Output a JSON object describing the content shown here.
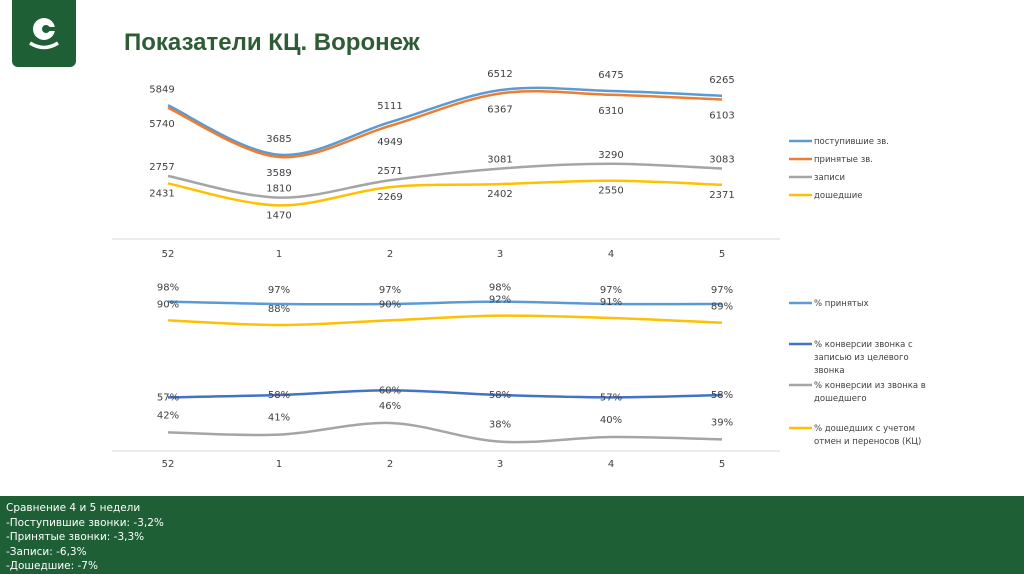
{
  "header": {
    "title": "Показатели КЦ. Воронеж"
  },
  "chart_data": [
    {
      "type": "line",
      "categories": [
        "52",
        "1",
        "2",
        "3",
        "4",
        "5"
      ],
      "ylim": [
        0,
        7000
      ],
      "grid": false,
      "legend": "right",
      "series": [
        {
          "name": "поступившие зв.",
          "color": "#5b9bd5",
          "values": [
            5849,
            3685,
            5111,
            6512,
            6475,
            6265
          ]
        },
        {
          "name": "принятые зв.",
          "color": "#ed7d31",
          "values": [
            5740,
            3589,
            4949,
            6367,
            6310,
            6103
          ]
        },
        {
          "name": "записи",
          "color": "#a5a5a5",
          "values": [
            2757,
            1810,
            2571,
            3081,
            3290,
            3083
          ]
        },
        {
          "name": "дошедшие",
          "color": "#ffc000",
          "values": [
            2431,
            1470,
            2269,
            2402,
            2550,
            2371
          ]
        }
      ]
    },
    {
      "type": "line",
      "categories": [
        "52",
        "1",
        "2",
        "3",
        "4",
        "5"
      ],
      "ylim": [
        34,
        100
      ],
      "grid": false,
      "legend": "right",
      "series": [
        {
          "name": "% принятых",
          "color": "#5b9bd5",
          "values": [
            98,
            97,
            97,
            98,
            97,
            97
          ]
        },
        {
          "name": "% конверсии звонка с записью из целевого звонка",
          "color": "#4472c4",
          "values": [
            57,
            58,
            60,
            58,
            57,
            58
          ]
        },
        {
          "name": "% конверсии из звонка в дошедшего",
          "color": "#a5a5a5",
          "values": [
            42,
            41,
            46,
            38,
            40,
            39
          ]
        },
        {
          "name": "% дошедших с учетом отмен и переносов (КЦ)",
          "color": "#ffc000",
          "values": [
            90,
            88,
            90,
            92,
            91,
            89
          ]
        }
      ]
    }
  ],
  "footer": {
    "lines": [
      "Сравнение 4 и 5 недели",
      "-Поступившие звонки: -3,2%",
      "-Принятые звонки:  -3,3%",
      "-Записи: -6,3%",
      "-Дошедшие: -7%"
    ]
  }
}
